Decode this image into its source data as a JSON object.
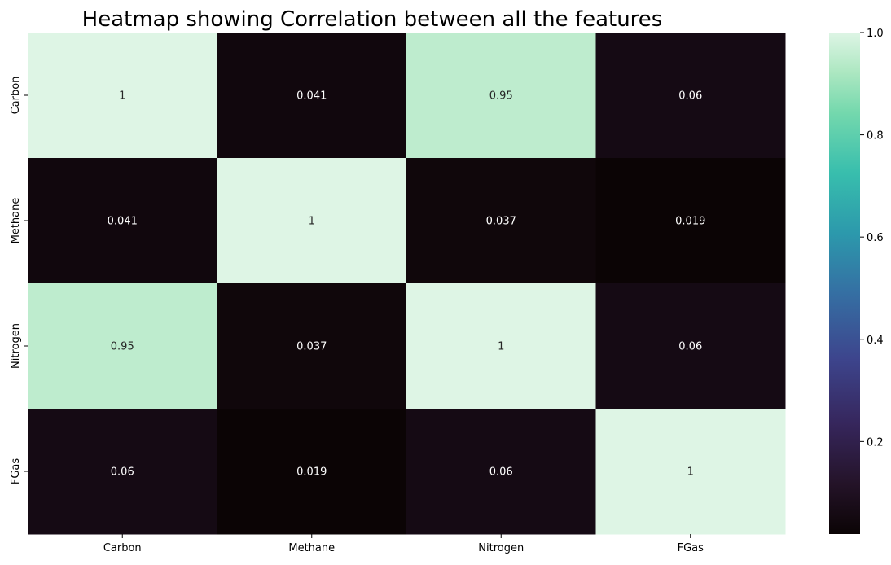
{
  "chart_data": {
    "type": "heatmap",
    "title": "Heatmap showing Correlation between all the features",
    "x_categories": [
      "Carbon",
      "Methane",
      "Nitrogen",
      "FGas"
    ],
    "y_categories": [
      "Carbon",
      "Methane",
      "Nitrogen",
      "FGas"
    ],
    "matrix": [
      [
        1,
        0.041,
        0.95,
        0.06
      ],
      [
        0.041,
        1,
        0.037,
        0.019
      ],
      [
        0.95,
        0.037,
        1,
        0.06
      ],
      [
        0.06,
        0.019,
        0.06,
        1
      ]
    ],
    "cell_labels": [
      [
        "1",
        "0.041",
        "0.95",
        "0.06"
      ],
      [
        "0.041",
        "1",
        "0.037",
        "0.019"
      ],
      [
        "0.95",
        "0.037",
        "1",
        "0.06"
      ],
      [
        "0.06",
        "0.019",
        "0.06",
        "1"
      ]
    ],
    "colormap": "mako",
    "colorbar": {
      "range": [
        0.019,
        1.0
      ],
      "ticks": [
        0.2,
        0.4,
        0.6,
        0.8,
        1.0
      ],
      "tick_labels": [
        "0.2",
        "0.4",
        "0.6",
        "0.8",
        "1.0"
      ]
    },
    "annotation_color": "#ffffff",
    "grid": false,
    "legend": "none"
  }
}
